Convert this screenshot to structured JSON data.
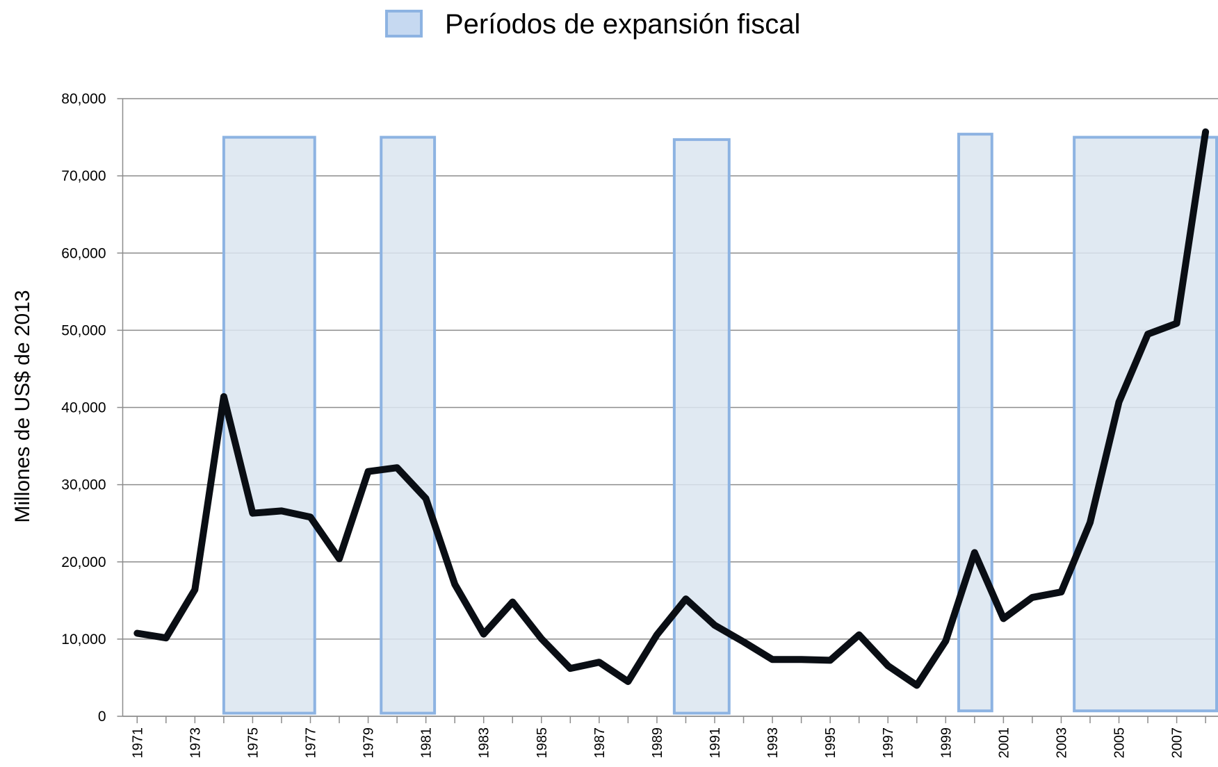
{
  "chart_data": {
    "type": "line",
    "y_axis_label": "Millones de US$ de 2013",
    "legend_label": "Períodos de expansión fiscal",
    "line_color": "#0a0e14",
    "period_fill": "#dbe5f0",
    "period_stroke": "#8db3e2",
    "x": [
      1971,
      1972,
      1973,
      1974,
      1975,
      1976,
      1977,
      1978,
      1979,
      1980,
      1981,
      1982,
      1983,
      1984,
      1985,
      1986,
      1987,
      1988,
      1989,
      1990,
      1991,
      1992,
      1993,
      1994,
      1995,
      1996,
      1997,
      1998,
      1999,
      2000,
      2001,
      2002,
      2003,
      2004,
      2005,
      2006,
      2007,
      2008
    ],
    "values": [
      10750,
      10150,
      16400,
      41400,
      26300,
      26600,
      25800,
      20400,
      31700,
      32200,
      28200,
      17100,
      10650,
      14800,
      10050,
      6200,
      7000,
      4500,
      10550,
      15200,
      11800,
      9650,
      7350,
      7350,
      7250,
      10550,
      6550,
      4000,
      9750,
      21200,
      12650,
      15400,
      16100,
      25100,
      40700,
      49500,
      50900,
      75700
    ],
    "periods": [
      {
        "start": 1974.0,
        "end": 1977.15,
        "low": 400,
        "high": 75000
      },
      {
        "start": 1979.45,
        "end": 1981.3,
        "low": 400,
        "high": 75000
      },
      {
        "start": 1989.6,
        "end": 1991.5,
        "low": 400,
        "high": 74700
      },
      {
        "start": 1999.45,
        "end": 2000.6,
        "low": 700,
        "high": 75400
      },
      {
        "start": 2003.45,
        "end": 2008.43,
        "low": 700,
        "high": 75000
      }
    ],
    "xlim": [
      1970.5,
      2008.43
    ],
    "xticks": [
      1971,
      1973,
      1975,
      1977,
      1979,
      1981,
      1983,
      1985,
      1987,
      1989,
      1991,
      1993,
      1995,
      1997,
      1999,
      2001,
      2003,
      2005,
      2007
    ],
    "xminor_ticks": [
      1972,
      1974,
      1976,
      1978,
      1980,
      1982,
      1984,
      1986,
      1988,
      1990,
      1992,
      1994,
      1996,
      1998,
      2000,
      2002,
      2004,
      2006,
      2008
    ],
    "ylim": [
      0,
      80000
    ],
    "yticks": [
      0,
      {
        "value": 10000,
        "label": "10,000"
      },
      {
        "value": 20000,
        "label": "20,000"
      },
      {
        "value": 30000,
        "label": "30,000"
      },
      {
        "value": 40000,
        "label": "40,000"
      },
      {
        "value": 50000,
        "label": "50,000"
      },
      {
        "value": 60000,
        "label": "60,000"
      },
      {
        "value": 70000,
        "label": "70,000"
      },
      {
        "value": 80000,
        "label": "80,000"
      }
    ],
    "grid": true
  }
}
